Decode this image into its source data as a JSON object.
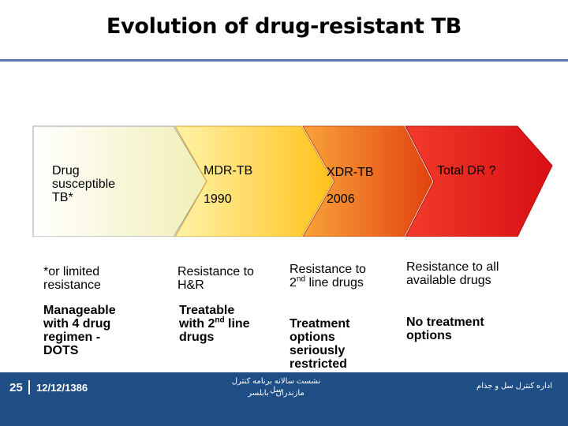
{
  "title": "Evolution of drug-resistant TB",
  "stages": [
    {
      "label": "Drug susceptible TB*",
      "year": "",
      "color": "#f6f5c2"
    },
    {
      "label": "MDR-TB",
      "year": "1990",
      "color": "#ffd447"
    },
    {
      "label": "XDR-TB",
      "year": "2006",
      "color": "#f27a1f"
    },
    {
      "label": "Total DR ?",
      "year": "",
      "color": "#e61e1e"
    }
  ],
  "resistance": [
    "*or limited resistance",
    "Resistance to H&R",
    "Resistance to 2",
    "Resistance to all available drugs"
  ],
  "resistance_sup": "nd",
  "resistance_tail": " line drugs",
  "treatment": [
    "Manageable with 4 drug regimen - DOTS",
    "Treatable with 2",
    "Treatment options seriously restricted",
    "No treatment options"
  ],
  "treatment_sup": "nd",
  "treatment_tail": " line drugs",
  "footer": {
    "page": "25",
    "date": "12/12/1386",
    "center_line1": "نشست سالانه برنامه کنترل سل",
    "center_line2": "مازندران - بابلسر",
    "right": "اداره کنترل سل و جذام"
  }
}
